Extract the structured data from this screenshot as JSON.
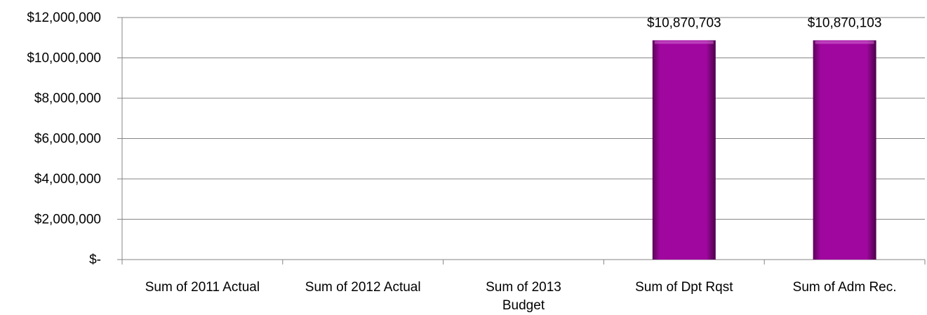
{
  "chart_data": {
    "type": "bar",
    "title": "",
    "xlabel": "",
    "ylabel": "",
    "ylim": [
      0,
      12000000
    ],
    "grid": true,
    "legend": "none",
    "y_ticks": [
      {
        "value": 0,
        "label": "$-"
      },
      {
        "value": 2000000,
        "label": "$2,000,000"
      },
      {
        "value": 4000000,
        "label": "$4,000,000"
      },
      {
        "value": 6000000,
        "label": "$6,000,000"
      },
      {
        "value": 8000000,
        "label": "$8,000,000"
      },
      {
        "value": 10000000,
        "label": "$10,000,000"
      },
      {
        "value": 12000000,
        "label": "$12,000,000"
      }
    ],
    "categories": [
      [
        "Sum of 2011 Actual"
      ],
      [
        "Sum of 2012 Actual"
      ],
      [
        "Sum of 2013",
        "Budget"
      ],
      [
        "Sum of Dpt Rqst"
      ],
      [
        "Sum of Adm Rec."
      ]
    ],
    "values": [
      null,
      null,
      null,
      10870703,
      10870103
    ],
    "data_labels": [
      "",
      "",
      "",
      "$10,870,703",
      "$10,870,103"
    ],
    "bar_color": "#a0079f"
  }
}
